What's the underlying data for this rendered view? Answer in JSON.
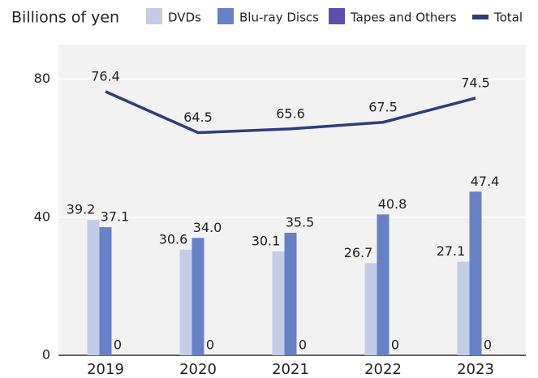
{
  "chart_data": {
    "type": "bar",
    "y_label": "Billions of yen",
    "categories": [
      "2019",
      "2020",
      "2021",
      "2022",
      "2023"
    ],
    "series": [
      {
        "name": "DVDs",
        "color": "#c3cde7",
        "values": [
          39.2,
          30.6,
          30.1,
          26.7,
          27.1
        ],
        "value_labels": [
          "39.2",
          "30.6",
          "30.1",
          "26.7",
          "27.1"
        ]
      },
      {
        "name": "Blu-ray Discs",
        "color": "#6681c6",
        "values": [
          37.1,
          34.0,
          35.5,
          40.8,
          47.4
        ],
        "value_labels": [
          "37.1",
          "34.0",
          "35.5",
          "40.8",
          "47.4"
        ]
      },
      {
        "name": "Tapes and Others",
        "color": "#5a4fae",
        "values": [
          0,
          0,
          0,
          0,
          0
        ],
        "value_labels": [
          "0",
          "0",
          "0",
          "0",
          "0"
        ]
      },
      {
        "name": "Total",
        "color": "#2e3d7c",
        "type": "line",
        "values": [
          76.4,
          64.5,
          65.6,
          67.5,
          74.5
        ],
        "value_labels": [
          "76.4",
          "64.5",
          "65.6",
          "67.5",
          "74.5"
        ]
      }
    ],
    "ylim": [
      0,
      90
    ],
    "yticks": [
      0,
      40,
      80
    ],
    "grid": true
  }
}
